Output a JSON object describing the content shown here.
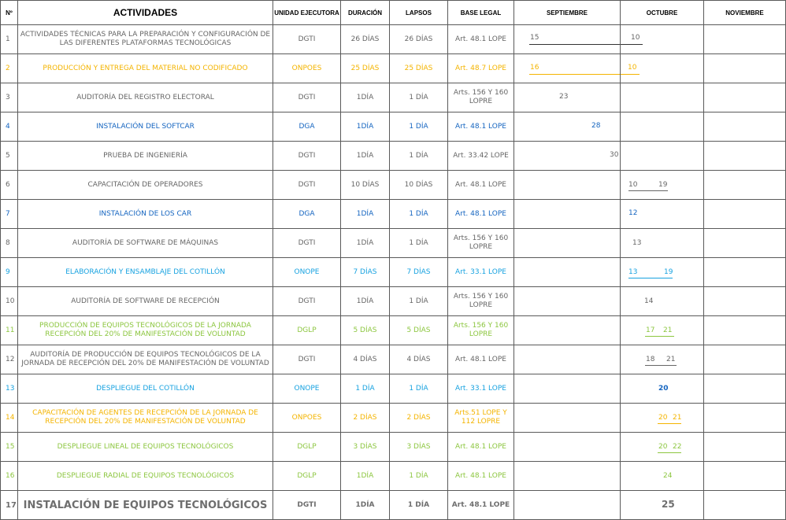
{
  "headers": {
    "num": "Nº",
    "activity": "ACTIVIDADES",
    "unit": "UNIDAD EJECUTORA",
    "duration": "DURACIÓN",
    "lapses": "LAPSOS",
    "legal": "BASE LEGAL",
    "months": [
      "SEPTIEMBRE",
      "OCTUBRE",
      "NOVIEMBRE"
    ]
  },
  "rows": [
    {
      "n": "1",
      "activity": "ACTIVIDADES TÉCNICAS PARA LA PREPARACIÓN Y CONFIGURACIÓN DE LAS DIFERENTES PLATAFORMAS TECNOLÓGICAS",
      "unit": "DGTI",
      "duration": "26 DÍAS",
      "lapses": "26 DÍAS",
      "legal": "Art. 48.1 LOPE",
      "start": "15",
      "end": "10",
      "color": "#666666"
    },
    {
      "n": "2",
      "activity": "PRODUCCIÓN Y ENTREGA DEL MATERIAL NO CODIFICADO",
      "unit": "ONPOES",
      "duration": "25 DÍAS",
      "lapses": "25 DÍAS",
      "legal": "Art. 48.7 LOPE",
      "start": "16",
      "end": "10",
      "color": "#f4b400"
    },
    {
      "n": "3",
      "activity": "AUDITORÍA DEL REGISTRO ELECTORAL",
      "unit": "DGTI",
      "duration": "1DÍA",
      "lapses": "1 DÍA",
      "legal": "Arts. 156 Y 160 LOPRE",
      "start": "23",
      "end": "",
      "color": "#666666"
    },
    {
      "n": "4",
      "activity": "INSTALACIÓN DEL SOFTCAR",
      "unit": "DGA",
      "duration": "1DÍA",
      "lapses": "1 DÍA",
      "legal": "Art. 48.1 LOPE",
      "start": "28",
      "end": "",
      "color": "#1565c0"
    },
    {
      "n": "5",
      "activity": "PRUEBA DE INGENIERÍA",
      "unit": "DGTI",
      "duration": "1DÍA",
      "lapses": "1 DÍA",
      "legal": "Art. 33.42 LOPE",
      "start": "30",
      "end": "",
      "color": "#666666"
    },
    {
      "n": "6",
      "activity": "CAPACITACIÓN DE OPERADORES",
      "unit": "DGTI",
      "duration": "10 DÍAS",
      "lapses": "10 DÍAS",
      "legal": "Art. 48.1 LOPE",
      "start": "10",
      "end": "19",
      "color": "#666666"
    },
    {
      "n": "7",
      "activity": "INSTALACIÓN DE LOS CAR",
      "unit": "DGA",
      "duration": "1DÍA",
      "lapses": "1 DÍA",
      "legal": "Art. 48.1 LOPE",
      "start": "12",
      "end": "",
      "color": "#1565c0"
    },
    {
      "n": "8",
      "activity": "AUDITORÍA DE SOFTWARE DE MÁQUINAS",
      "unit": "DGTI",
      "duration": "1DÍA",
      "lapses": "1 DÍA",
      "legal": "Arts. 156 Y 160 LOPRE",
      "start": "13",
      "end": "",
      "color": "#666666"
    },
    {
      "n": "9",
      "activity": "ELABORACIÓN Y ENSAMBLAJE DEL COTILLÓN",
      "unit": "ONOPE",
      "duration": "7 DÍAS",
      "lapses": "7 DÍAS",
      "legal": "Art. 33.1 LOPE",
      "start": "13",
      "end": "19",
      "color": "#17a2e0"
    },
    {
      "n": "10",
      "activity": "AUDITORÍA DE SOFTWARE DE RECEPCIÓN",
      "unit": "DGTI",
      "duration": "1DÍA",
      "lapses": "1 DÍA",
      "legal": "Arts. 156 Y 160 LOPRE",
      "start": "14",
      "end": "",
      "color": "#666666"
    },
    {
      "n": "11",
      "activity": "PRODUCCIÓN DE EQUIPOS TECNOLÓGICOS DE LA JORNADA RECEPCIÓN DEL 20% DE MANIFESTACIÓN DE VOLUNTAD",
      "unit": "DGLP",
      "duration": "5 DÍAS",
      "lapses": "5 DÍAS",
      "legal": "Arts. 156 Y 160 LOPRE",
      "start": "17",
      "end": "21",
      "color": "#8cc63f"
    },
    {
      "n": "12",
      "activity": "AUDITORÍA DE PRODUCCIÓN DE EQUIPOS TECNOLÓGICOS DE LA JORNADA DE RECEPCIÓN DEL 20% DE MANIFESTACIÓN DE VOLUNTAD",
      "unit": "DGTI",
      "duration": "4 DÍAS",
      "lapses": "4 DÍAS",
      "legal": "Art. 48.1 LOPE",
      "start": "18",
      "end": "21",
      "color": "#666666"
    },
    {
      "n": "13",
      "activity": "DESPLIEGUE DEL COTILLÓN",
      "unit": "ONOPE",
      "duration": "1 DÍA",
      "lapses": "1 DÍA",
      "legal": "Art. 33.1 LOPE",
      "start": "20",
      "end": "",
      "color": "#17a2e0"
    },
    {
      "n": "14",
      "activity": "CAPACITACIÓN DE AGENTES DE RECEPCIÓN DE LA JORNADA DE RECEPCIÓN DEL 20% DE MANIFESTACIÓN DE VOLUNTAD",
      "unit": "ONPOES",
      "duration": "2 DÍAS",
      "lapses": "2 DÍAS",
      "legal": "Arts.51 LOPE Y 112 LOPRE",
      "start": "20",
      "end": "21",
      "color": "#f4b400"
    },
    {
      "n": "15",
      "activity": "DESPLIEGUE LINEAL DE EQUIPOS TECNOLÓGICOS",
      "unit": "DGLP",
      "duration": "3 DÍAS",
      "lapses": "3 DÍAS",
      "legal": "Art. 48.1 LOPE",
      "start": "20",
      "end": "22",
      "color": "#8cc63f"
    },
    {
      "n": "16",
      "activity": "DESPLIEGUE RADIAL DE EQUIPOS TECNOLÓGICOS",
      "unit": "DGLP",
      "duration": "1DÍA",
      "lapses": "1 DÍA",
      "legal": "Art. 48.1 LOPE",
      "start": "24",
      "end": "",
      "color": "#8cc63f"
    },
    {
      "n": "17",
      "activity": "INSTALACIÓN DE EQUIPOS TECNOLÓGICOS",
      "unit": "DGTI",
      "duration": "1DÍA",
      "lapses": "1 DÍA",
      "legal": "Art. 48.1 LOPE",
      "start": "25",
      "end": "",
      "color": "#6e6e6e"
    }
  ]
}
